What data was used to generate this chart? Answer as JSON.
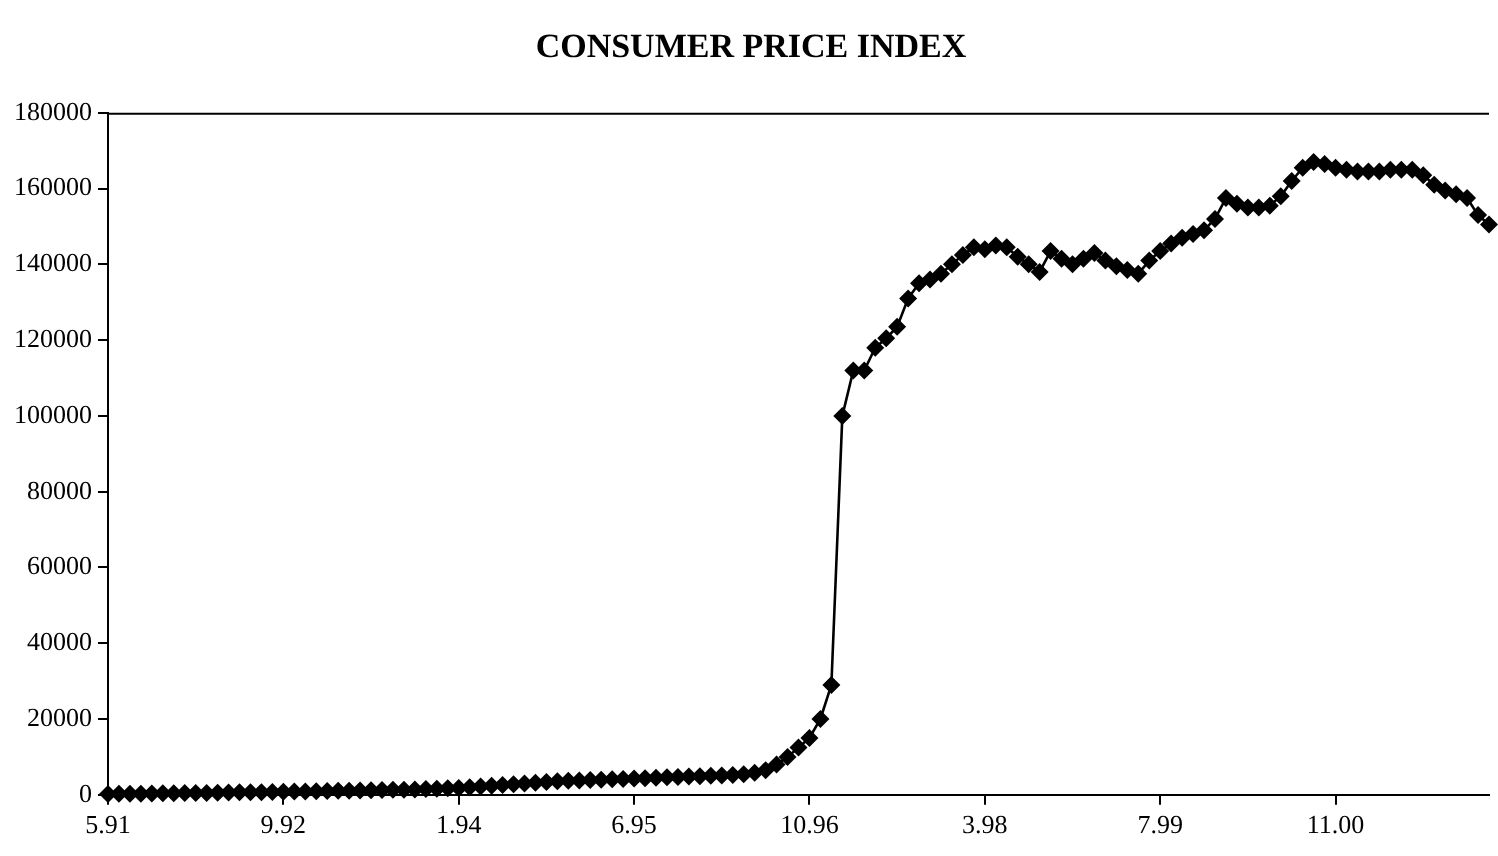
{
  "chart_data": {
    "type": "line",
    "title": "CONSUMER PRICE INDEX",
    "categories": [
      "5.91",
      null,
      null,
      null,
      null,
      null,
      null,
      null,
      null,
      null,
      null,
      null,
      null,
      null,
      null,
      null,
      "9.92",
      null,
      null,
      null,
      null,
      null,
      null,
      null,
      null,
      null,
      null,
      null,
      null,
      null,
      null,
      null,
      "1.94",
      null,
      null,
      null,
      null,
      null,
      null,
      null,
      null,
      null,
      null,
      null,
      null,
      null,
      null,
      null,
      "6.95",
      null,
      null,
      null,
      null,
      null,
      null,
      null,
      null,
      null,
      null,
      null,
      null,
      null,
      null,
      null,
      "10.96",
      null,
      null,
      null,
      null,
      null,
      null,
      null,
      null,
      null,
      null,
      null,
      null,
      null,
      null,
      null,
      "3.98",
      null,
      null,
      null,
      null,
      null,
      null,
      null,
      null,
      null,
      null,
      null,
      null,
      null,
      null,
      null,
      "7.99",
      null,
      null,
      null,
      null,
      null,
      null,
      null,
      null,
      null,
      null,
      null,
      null,
      null,
      null,
      null,
      "11.00",
      null,
      null,
      null,
      null,
      null,
      null,
      null,
      null,
      null,
      null,
      null,
      null,
      null,
      null
    ],
    "series": [
      {
        "color": "#000000",
        "values": [
          200,
          250,
          300,
          300,
          350,
          400,
          400,
          450,
          500,
          500,
          550,
          600,
          650,
          700,
          700,
          750,
          800,
          850,
          900,
          950,
          1000,
          1050,
          1100,
          1150,
          1200,
          1250,
          1300,
          1350,
          1400,
          1500,
          1600,
          1700,
          1800,
          2000,
          2200,
          2400,
          2600,
          2800,
          3000,
          3200,
          3400,
          3600,
          3700,
          3800,
          3900,
          4000,
          4100,
          4200,
          4300,
          4400,
          4500,
          4600,
          4700,
          4800,
          4900,
          5000,
          5100,
          5200,
          5400,
          5800,
          6500,
          8000,
          10000,
          12500,
          15000,
          20000,
          29000,
          100000,
          112000,
          112000,
          118000,
          120500,
          123500,
          131000,
          135000,
          136000,
          137500,
          140000,
          142500,
          144500,
          144000,
          145000,
          144500,
          142000,
          140000,
          138000,
          143500,
          141500,
          140000,
          141500,
          143000,
          141000,
          139500,
          138500,
          137500,
          141000,
          143500,
          145500,
          147000,
          148000,
          149000,
          152000,
          157500,
          156000,
          155000,
          155000,
          155500,
          158000,
          162000,
          165500,
          167000,
          166500,
          165500,
          165000,
          164500,
          164500,
          164500,
          165000,
          165000,
          165000,
          163500,
          161000,
          159500,
          158500,
          157500,
          153000,
          150500
        ]
      }
    ],
    "ylim": [
      0,
      180000
    ],
    "yticks": [
      0,
      20000,
      40000,
      60000,
      80000,
      100000,
      120000,
      140000,
      160000,
      180000
    ],
    "grid": false,
    "legend": false,
    "marker": "diamond",
    "line_style": "solid"
  }
}
